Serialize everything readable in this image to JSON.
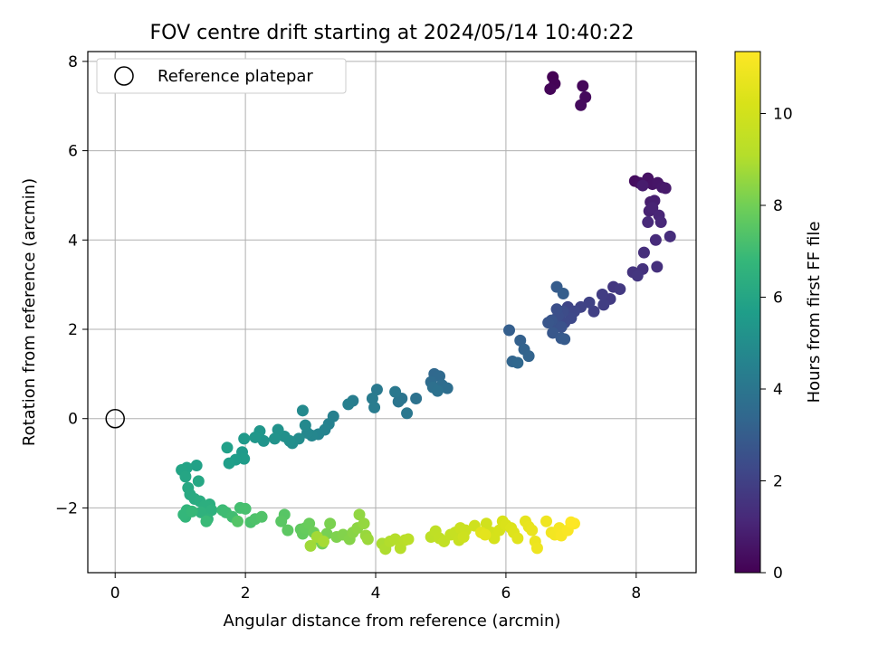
{
  "chart_data": {
    "type": "scatter",
    "title": "FOV centre drift starting at 2024/05/14 10:40:22",
    "xlabel": "Angular distance from reference (arcmin)",
    "ylabel": "Rotation from reference (arcmin)",
    "xlim": [
      -0.42,
      8.92
    ],
    "ylim": [
      -3.45,
      8.22
    ],
    "xticks": [
      0,
      2,
      4,
      6,
      8
    ],
    "yticks": [
      -2,
      0,
      2,
      4,
      6,
      8
    ],
    "grid": true,
    "legend": {
      "position": "top-left",
      "entries": [
        "Reference platepar"
      ]
    },
    "reference_point": {
      "x": 0,
      "y": 0
    },
    "colorbar": {
      "label": "Hours from first FF file",
      "colormap": "viridis",
      "range": [
        0,
        11.35
      ],
      "ticks": [
        0,
        2,
        4,
        6,
        8,
        10
      ]
    },
    "series": [
      {
        "points": [
          [
            6.72,
            7.65
          ],
          [
            6.75,
            7.5
          ],
          [
            6.68,
            7.38
          ],
          [
            7.18,
            7.45
          ],
          [
            7.22,
            7.2
          ],
          [
            7.15,
            7.02
          ],
          [
            7.98,
            5.32
          ],
          [
            8.05,
            5.28
          ],
          [
            8.18,
            5.38
          ],
          [
            8.25,
            5.25
          ],
          [
            8.33,
            5.28
          ],
          [
            8.4,
            5.18
          ],
          [
            8.45,
            5.16
          ],
          [
            8.1,
            5.22
          ],
          [
            8.22,
            4.85
          ],
          [
            8.28,
            4.88
          ],
          [
            8.2,
            4.65
          ],
          [
            8.25,
            4.72
          ],
          [
            8.35,
            4.55
          ],
          [
            8.38,
            4.4
          ],
          [
            8.18,
            4.4
          ],
          [
            8.3,
            4.0
          ],
          [
            8.52,
            4.08
          ],
          [
            8.12,
            3.72
          ],
          [
            8.32,
            3.4
          ],
          [
            8.1,
            3.35
          ],
          [
            7.95,
            3.28
          ],
          [
            8.02,
            3.2
          ],
          [
            7.65,
            2.95
          ],
          [
            7.75,
            2.9
          ],
          [
            7.6,
            2.68
          ],
          [
            7.48,
            2.78
          ],
          [
            7.5,
            2.55
          ],
          [
            7.35,
            2.4
          ],
          [
            7.28,
            2.6
          ],
          [
            7.15,
            2.5
          ],
          [
            6.95,
            2.5
          ],
          [
            7.05,
            2.4
          ],
          [
            7.0,
            2.25
          ],
          [
            6.9,
            2.15
          ],
          [
            6.88,
            2.4
          ],
          [
            6.8,
            2.3
          ],
          [
            6.78,
            2.45
          ],
          [
            6.75,
            2.1
          ],
          [
            6.85,
            2.05
          ],
          [
            6.7,
            2.2
          ],
          [
            6.65,
            2.15
          ],
          [
            6.72,
            1.92
          ],
          [
            6.85,
            1.8
          ],
          [
            6.9,
            1.78
          ],
          [
            6.78,
            2.95
          ],
          [
            6.88,
            2.8
          ],
          [
            6.05,
            1.98
          ],
          [
            6.22,
            1.75
          ],
          [
            6.28,
            1.55
          ],
          [
            6.35,
            1.4
          ],
          [
            6.1,
            1.28
          ],
          [
            6.18,
            1.25
          ],
          [
            4.9,
            1.0
          ],
          [
            4.98,
            0.95
          ],
          [
            4.85,
            0.82
          ],
          [
            5.02,
            0.75
          ],
          [
            5.1,
            0.68
          ],
          [
            4.88,
            0.7
          ],
          [
            4.95,
            0.62
          ],
          [
            4.62,
            0.45
          ],
          [
            4.4,
            0.45
          ],
          [
            4.35,
            0.38
          ],
          [
            4.48,
            0.12
          ],
          [
            4.3,
            0.6
          ],
          [
            4.02,
            0.65
          ],
          [
            3.95,
            0.45
          ],
          [
            3.98,
            0.25
          ],
          [
            3.65,
            0.4
          ],
          [
            3.58,
            0.32
          ],
          [
            3.35,
            0.05
          ],
          [
            3.28,
            -0.12
          ],
          [
            3.22,
            -0.25
          ],
          [
            3.12,
            -0.35
          ],
          [
            3.02,
            -0.38
          ],
          [
            2.95,
            -0.32
          ],
          [
            2.92,
            -0.15
          ],
          [
            2.88,
            0.18
          ],
          [
            2.82,
            -0.45
          ],
          [
            2.72,
            -0.55
          ],
          [
            2.68,
            -0.5
          ],
          [
            2.6,
            -0.4
          ],
          [
            2.5,
            -0.25
          ],
          [
            2.45,
            -0.45
          ],
          [
            2.28,
            -0.5
          ],
          [
            2.22,
            -0.28
          ],
          [
            2.15,
            -0.42
          ],
          [
            1.98,
            -0.45
          ],
          [
            1.95,
            -0.75
          ],
          [
            1.98,
            -0.9
          ],
          [
            1.85,
            -0.92
          ],
          [
            1.75,
            -1.0
          ],
          [
            1.72,
            -0.65
          ],
          [
            1.25,
            -1.05
          ],
          [
            1.1,
            -1.1
          ],
          [
            1.02,
            -1.15
          ],
          [
            1.08,
            -1.3
          ],
          [
            1.28,
            -1.4
          ],
          [
            1.12,
            -1.55
          ],
          [
            1.15,
            -1.7
          ],
          [
            1.22,
            -1.8
          ],
          [
            1.3,
            -1.85
          ],
          [
            1.45,
            -1.92
          ],
          [
            1.38,
            -1.95
          ],
          [
            1.48,
            -2.05
          ],
          [
            1.32,
            -2.1
          ],
          [
            1.42,
            -2.25
          ],
          [
            1.1,
            -2.05
          ],
          [
            1.08,
            -2.2
          ],
          [
            1.05,
            -2.15
          ],
          [
            1.18,
            -2.08
          ],
          [
            1.4,
            -2.3
          ],
          [
            1.65,
            -2.05
          ],
          [
            1.7,
            -2.1
          ],
          [
            1.8,
            -2.2
          ],
          [
            1.92,
            -2.0
          ],
          [
            2.0,
            -2.02
          ],
          [
            2.08,
            -2.32
          ],
          [
            2.15,
            -2.25
          ],
          [
            2.25,
            -2.2
          ],
          [
            1.88,
            -2.3
          ],
          [
            2.6,
            -2.15
          ],
          [
            2.55,
            -2.3
          ],
          [
            2.65,
            -2.5
          ],
          [
            2.85,
            -2.48
          ],
          [
            2.88,
            -2.58
          ],
          [
            2.92,
            -2.45
          ],
          [
            2.98,
            -2.35
          ],
          [
            3.05,
            -2.55
          ],
          [
            3.12,
            -2.7
          ],
          [
            3.18,
            -2.8
          ],
          [
            3.25,
            -2.58
          ],
          [
            3.3,
            -2.35
          ],
          [
            3.4,
            -2.65
          ],
          [
            3.5,
            -2.6
          ],
          [
            3.6,
            -2.7
          ],
          [
            3.65,
            -2.55
          ],
          [
            3.72,
            -2.45
          ],
          [
            3.75,
            -2.15
          ],
          [
            3.82,
            -2.35
          ],
          [
            3.85,
            -2.62
          ],
          [
            3.88,
            -2.7
          ],
          [
            3.0,
            -2.85
          ],
          [
            3.1,
            -2.65
          ],
          [
            3.2,
            -2.75
          ],
          [
            4.1,
            -2.8
          ],
          [
            4.15,
            -2.92
          ],
          [
            4.22,
            -2.75
          ],
          [
            4.3,
            -2.7
          ],
          [
            4.38,
            -2.9
          ],
          [
            4.45,
            -2.72
          ],
          [
            4.5,
            -2.7
          ],
          [
            4.85,
            -2.65
          ],
          [
            4.92,
            -2.52
          ],
          [
            4.98,
            -2.68
          ],
          [
            5.05,
            -2.75
          ],
          [
            5.15,
            -2.6
          ],
          [
            5.22,
            -2.55
          ],
          [
            5.28,
            -2.72
          ],
          [
            5.3,
            -2.45
          ],
          [
            5.38,
            -2.5
          ],
          [
            5.35,
            -2.65
          ],
          [
            5.52,
            -2.4
          ],
          [
            5.7,
            -2.35
          ],
          [
            5.78,
            -2.55
          ],
          [
            5.82,
            -2.68
          ],
          [
            5.9,
            -2.5
          ],
          [
            5.95,
            -2.3
          ],
          [
            6.0,
            -2.38
          ],
          [
            6.08,
            -2.45
          ],
          [
            6.12,
            -2.55
          ],
          [
            6.18,
            -2.68
          ],
          [
            5.62,
            -2.55
          ],
          [
            5.68,
            -2.6
          ],
          [
            6.3,
            -2.3
          ],
          [
            6.35,
            -2.42
          ],
          [
            6.4,
            -2.5
          ],
          [
            6.45,
            -2.75
          ],
          [
            6.48,
            -2.9
          ],
          [
            6.62,
            -2.3
          ],
          [
            6.7,
            -2.55
          ],
          [
            6.75,
            -2.6
          ],
          [
            6.82,
            -2.45
          ],
          [
            6.85,
            -2.62
          ],
          [
            6.95,
            -2.5
          ],
          [
            7.05,
            -2.35
          ],
          [
            7.0,
            -2.32
          ]
        ]
      }
    ]
  }
}
